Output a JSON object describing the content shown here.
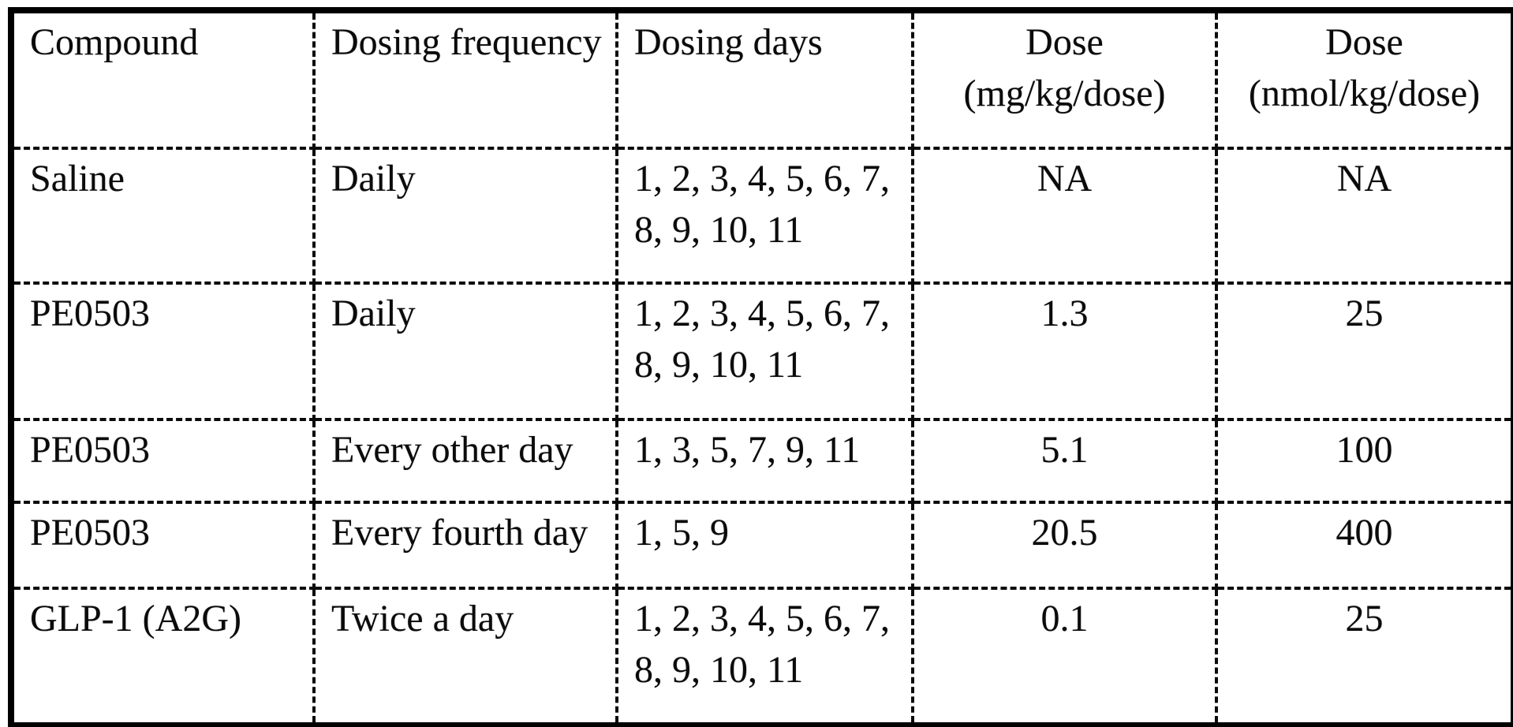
{
  "table": {
    "headers": [
      "Compound",
      "Dosing frequency",
      "Dosing days",
      "Dose (mg/kg/dose)",
      "Dose (nmol/kg/dose)"
    ],
    "rows": [
      [
        "Saline",
        "Daily",
        "1, 2, 3, 4, 5, 6, 7, 8, 9, 10, 11",
        "NA",
        "NA"
      ],
      [
        "PE0503",
        "Daily",
        "1, 2, 3, 4, 5, 6, 7, 8, 9, 10, 11",
        "1.3",
        "25"
      ],
      [
        "PE0503",
        "Every other day",
        "1, 3, 5, 7, 9, 11",
        "5.1",
        "100"
      ],
      [
        "PE0503",
        "Every fourth day",
        "1, 5, 9",
        "20.5",
        "400"
      ],
      [
        "GLP-1 (A2G)",
        "Twice a day",
        "1, 2, 3, 4, 5, 6, 7, 8, 9, 10, 11",
        "0.1",
        "25"
      ]
    ]
  },
  "colors": {
    "ink": "#0b0b0b",
    "paper": "#ffffff"
  }
}
